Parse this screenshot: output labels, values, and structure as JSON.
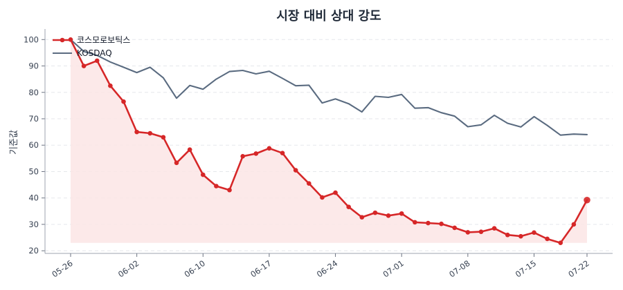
{
  "chart_data": {
    "type": "line",
    "title": "시장 대비 상대 강도",
    "ylabel": "기준값",
    "xlabel": "",
    "ylim": [
      19,
      104
    ],
    "yticks": [
      20,
      30,
      40,
      50,
      60,
      70,
      80,
      90,
      100
    ],
    "grid": true,
    "legend_position": "top-left",
    "xtick_labels": [
      "05-26",
      "06-02",
      "06-10",
      "06-17",
      "06-24",
      "07-01",
      "07-08",
      "07-15",
      "07-22"
    ],
    "xtick_positions": [
      0,
      5,
      10,
      15,
      20,
      25,
      30,
      35,
      39
    ],
    "series": [
      {
        "name": "코스모로보틱스",
        "color": "#d62728",
        "fill": "#fbe5e5",
        "values": [
          100,
          90,
          92,
          82.5,
          76.5,
          65,
          64.5,
          63,
          53.3,
          58.3,
          48.8,
          44.5,
          43,
          55.8,
          56.8,
          58.8,
          57,
          50.5,
          45.5,
          40.2,
          42,
          36.6,
          32.7,
          34.4,
          33.3,
          34.1,
          30.8,
          30.5,
          30.2,
          28.7,
          27,
          27.2,
          28.5,
          26,
          25.5,
          26.9,
          24.5,
          23,
          30,
          39.2
        ]
      },
      {
        "name": "KOSDAQ",
        "color": "#5a6b80",
        "values": [
          100,
          95.5,
          94,
          91.5,
          89.5,
          87.5,
          89.5,
          85.5,
          77.8,
          82.6,
          81.2,
          85,
          87.9,
          88.3,
          87,
          88,
          85.3,
          82.5,
          82.7,
          76,
          77.5,
          75.7,
          72.6,
          78.5,
          78.1,
          79.2,
          74,
          74.2,
          72.3,
          71,
          67,
          67.7,
          71.3,
          68.3,
          66.9,
          70.8,
          67.5,
          63.8,
          64.2,
          64
        ]
      }
    ]
  }
}
